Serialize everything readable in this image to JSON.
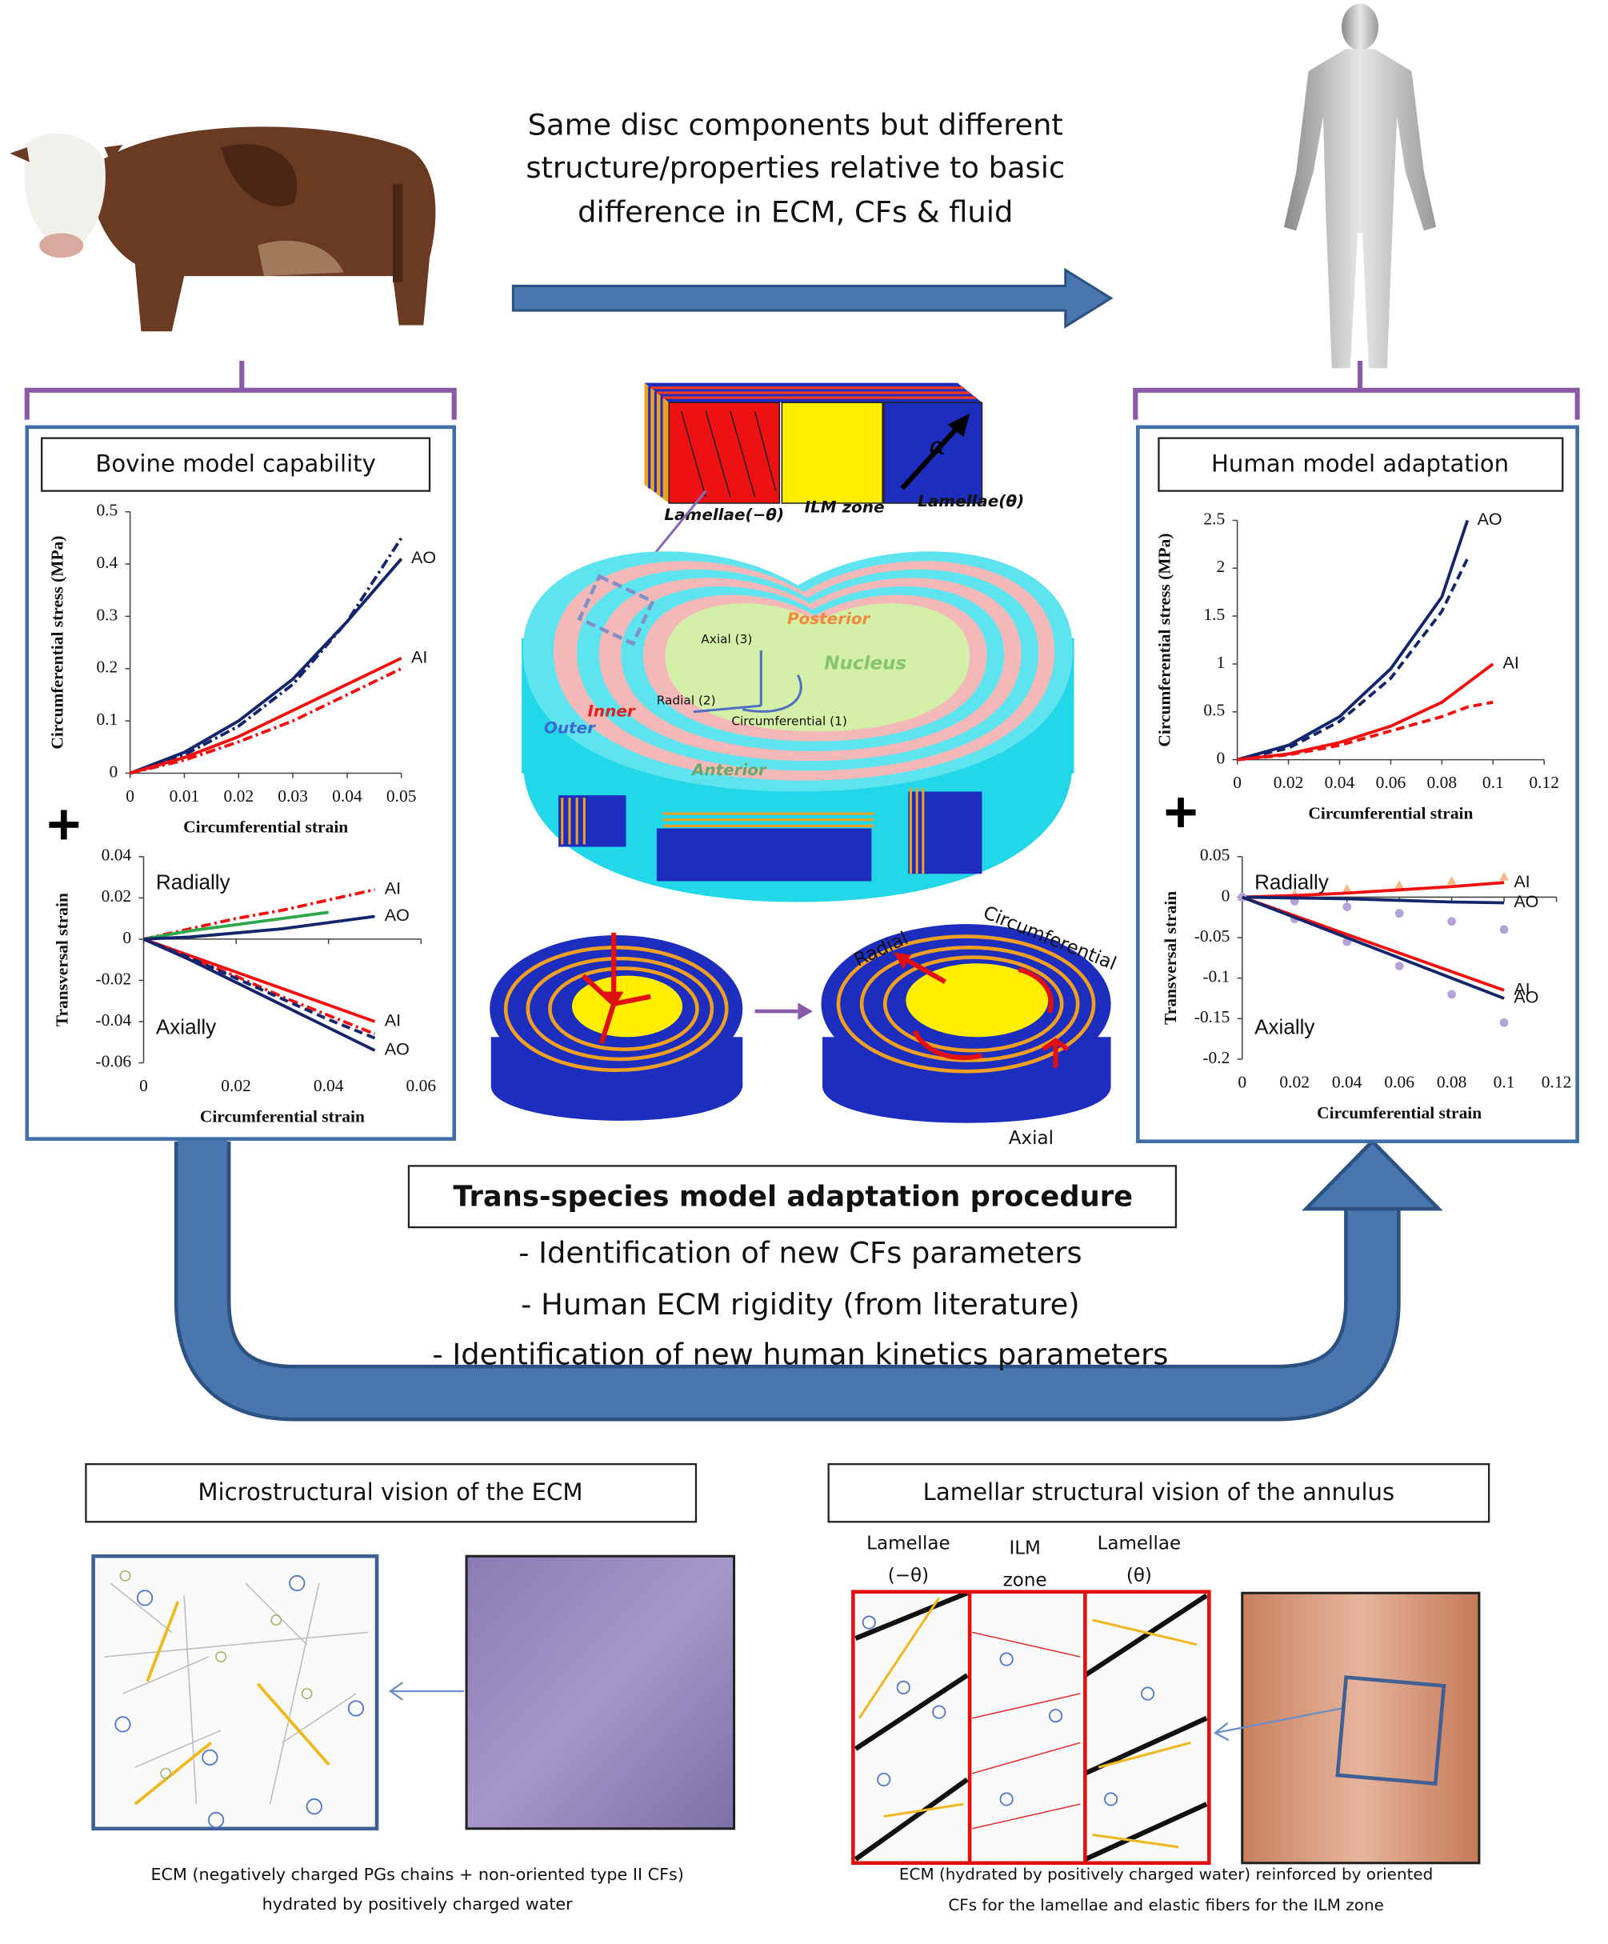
{
  "header": {
    "lines": [
      "Same disc components but different",
      "structure/properties relative to basic",
      "difference in ECM, CFs & fluid"
    ]
  },
  "bovine_panel": {
    "title": "Bovine model capability"
  },
  "human_panel": {
    "title": "Human model adaptation"
  },
  "disc": {
    "block_labels": [
      "Lamellae(−θ)",
      "ILM zone",
      "Lamellae(θ)"
    ],
    "angle": "α",
    "regions": {
      "posterior": "Posterior",
      "nucleus": "Nucleus",
      "inner": "Inner",
      "outer": "Outer",
      "anterior": "Anterior"
    },
    "axes": [
      "Axial (3)",
      "Radial (2)",
      "Circumferential (1)"
    ],
    "load_labels": [
      "Radial",
      "Circumferential",
      "Axial"
    ]
  },
  "procedure": {
    "title": "Trans-species model adaptation procedure",
    "items": [
      "- Identification of new CFs parameters",
      "- Human ECM rigidity (from literature)",
      "- Identification of new human kinetics parameters"
    ]
  },
  "micro": {
    "title": "Microstructural vision of the ECM",
    "caption": [
      "ECM (negatively charged PGs chains + non-oriented type II CFs)",
      "hydrated by positively charged water"
    ]
  },
  "lamellar": {
    "title": "Lamellar structural vision of the annulus",
    "columns": [
      [
        "Lamellae",
        "(−θ)"
      ],
      [
        "ILM",
        "zone"
      ],
      [
        "Lamellae",
        "(θ)"
      ]
    ],
    "caption": [
      "ECM (hydrated by positively charged water) reinforced by oriented",
      "CFs for the lamellae and elastic fibers for the ILM zone"
    ]
  },
  "chart_data": [
    {
      "type": "line",
      "xlabel": "Circumferential strain",
      "ylabel": "Circumferential stress (MPa)",
      "xlim": [
        0,
        0.05
      ],
      "ylim": [
        0,
        0.5
      ],
      "xticks": [
        0,
        0.01,
        0.02,
        0.03,
        0.04,
        0.05
      ],
      "yticks": [
        0,
        0.1,
        0.2,
        0.3,
        0.4,
        0.5
      ],
      "x": [
        0,
        0.01,
        0.02,
        0.03,
        0.04,
        0.05
      ],
      "series": [
        {
          "name": "AO",
          "color": "#14256b",
          "style": "solid",
          "values": [
            0,
            0.04,
            0.1,
            0.18,
            0.29,
            0.41
          ]
        },
        {
          "color": "#14256b",
          "style": "dashdot",
          "values": [
            0,
            0.035,
            0.09,
            0.17,
            0.29,
            0.45
          ]
        },
        {
          "name": "AI",
          "color": "#f01010",
          "style": "solid",
          "values": [
            0,
            0.03,
            0.07,
            0.12,
            0.17,
            0.22
          ]
        },
        {
          "color": "#f01010",
          "style": "dashdot",
          "values": [
            0,
            0.025,
            0.06,
            0.1,
            0.15,
            0.2
          ]
        }
      ]
    },
    {
      "type": "line",
      "xlabel": "Circumferential strain",
      "ylabel": "Transversal strain",
      "xlim": [
        0,
        0.06
      ],
      "ylim": [
        -0.06,
        0.04
      ],
      "xticks": [
        0,
        0.02,
        0.04,
        0.06
      ],
      "yticks": [
        -0.06,
        -0.04,
        -0.02,
        0,
        0.02,
        0.04
      ],
      "annotations": [
        "Radially",
        "Axially"
      ],
      "x": [
        0,
        0.01,
        0.02,
        0.03,
        0.04,
        0.05
      ],
      "series": [
        {
          "name": "AI",
          "color": "#f01010",
          "style": "dashdot",
          "values": [
            0,
            0.005,
            0.01,
            0.014,
            0.019,
            0.024
          ]
        },
        {
          "color": "#2ca84a",
          "style": "solid",
          "values": [
            0,
            0.004,
            0.007,
            0.01,
            0.013,
            null
          ]
        },
        {
          "name": "AO",
          "color": "#14256b",
          "style": "solid",
          "values": [
            0,
            0.001,
            0.003,
            0.005,
            0.008,
            0.011
          ]
        },
        {
          "name": "AI",
          "color": "#f01010",
          "style": "solid",
          "values": [
            0,
            -0.008,
            -0.016,
            -0.024,
            -0.032,
            -0.04
          ]
        },
        {
          "color": "#f01010",
          "style": "dashdot",
          "values": [
            0,
            -0.009,
            -0.018,
            -0.028,
            -0.037,
            -0.046
          ]
        },
        {
          "name": "AO",
          "color": "#14256b",
          "style": "solid",
          "values": [
            0,
            -0.01,
            -0.021,
            -0.032,
            -0.043,
            -0.054
          ]
        },
        {
          "color": "#14256b",
          "style": "dash",
          "values": [
            0,
            -0.009,
            -0.019,
            -0.029,
            -0.039,
            -0.048
          ]
        }
      ]
    },
    {
      "type": "line",
      "xlabel": "Circumferential strain",
      "ylabel": "Circumferential stress (MPa)",
      "xlim": [
        0,
        0.12
      ],
      "ylim": [
        0,
        2.5
      ],
      "xticks": [
        0,
        0.02,
        0.04,
        0.06,
        0.08,
        0.1,
        0.12
      ],
      "yticks": [
        0,
        0.5,
        1,
        1.5,
        2,
        2.5
      ],
      "x": [
        0,
        0.02,
        0.04,
        0.06,
        0.08,
        0.09,
        0.1
      ],
      "series": [
        {
          "name": "AO",
          "color": "#14256b",
          "style": "solid",
          "values": [
            0,
            0.15,
            0.45,
            0.95,
            1.7,
            2.5,
            null
          ]
        },
        {
          "color": "#14256b",
          "style": "dash",
          "values": [
            0,
            0.12,
            0.4,
            0.85,
            1.55,
            2.1,
            null
          ]
        },
        {
          "name": "AI",
          "color": "#f01010",
          "style": "solid",
          "values": [
            0,
            0.06,
            0.18,
            0.35,
            0.6,
            0.8,
            1
          ]
        },
        {
          "color": "#f01010",
          "style": "dash",
          "values": [
            0,
            0.05,
            0.15,
            0.3,
            0.45,
            0.55,
            0.6
          ]
        }
      ]
    },
    {
      "type": "line",
      "xlabel": "Circumferential strain",
      "ylabel": "Transversal strain",
      "xlim": [
        0,
        0.12
      ],
      "ylim": [
        -0.2,
        0.05
      ],
      "xticks": [
        0,
        0.02,
        0.04,
        0.06,
        0.08,
        0.1,
        0.12
      ],
      "yticks": [
        -0.2,
        -0.15,
        -0.1,
        -0.05,
        0,
        0.05
      ],
      "annotations": [
        "Radially",
        "Axially"
      ],
      "x": [
        0,
        0.02,
        0.04,
        0.06,
        0.08,
        0.1
      ],
      "series": [
        {
          "color": "#f4b98a",
          "style": "triangle",
          "values": [
            0,
            0.004,
            0.01,
            0.015,
            0.02,
            0.025
          ]
        },
        {
          "name": "AI",
          "color": "#f01010",
          "style": "solid",
          "values": [
            0,
            0.002,
            0.005,
            0.009,
            0.013,
            0.018
          ]
        },
        {
          "color": "#b5a2d8",
          "style": "dot",
          "values": [
            0,
            -0.005,
            -0.012,
            -0.02,
            -0.03,
            -0.04
          ]
        },
        {
          "name": "AO",
          "color": "#14256b",
          "style": "solid",
          "values": [
            0,
            -0.001,
            -0.002,
            -0.004,
            -0.006,
            -0.007
          ]
        },
        {
          "color": "#b5a2d8",
          "style": "dot",
          "values": [
            0,
            -0.027,
            -0.055,
            -0.085,
            -0.12,
            -0.155
          ]
        },
        {
          "name": "AI",
          "color": "#f01010",
          "style": "solid",
          "values": [
            0,
            -0.023,
            -0.046,
            -0.069,
            -0.092,
            -0.115
          ]
        },
        {
          "name": "AO",
          "color": "#14256b",
          "style": "solid",
          "values": [
            0,
            -0.025,
            -0.05,
            -0.075,
            -0.1,
            -0.125
          ]
        }
      ]
    }
  ]
}
